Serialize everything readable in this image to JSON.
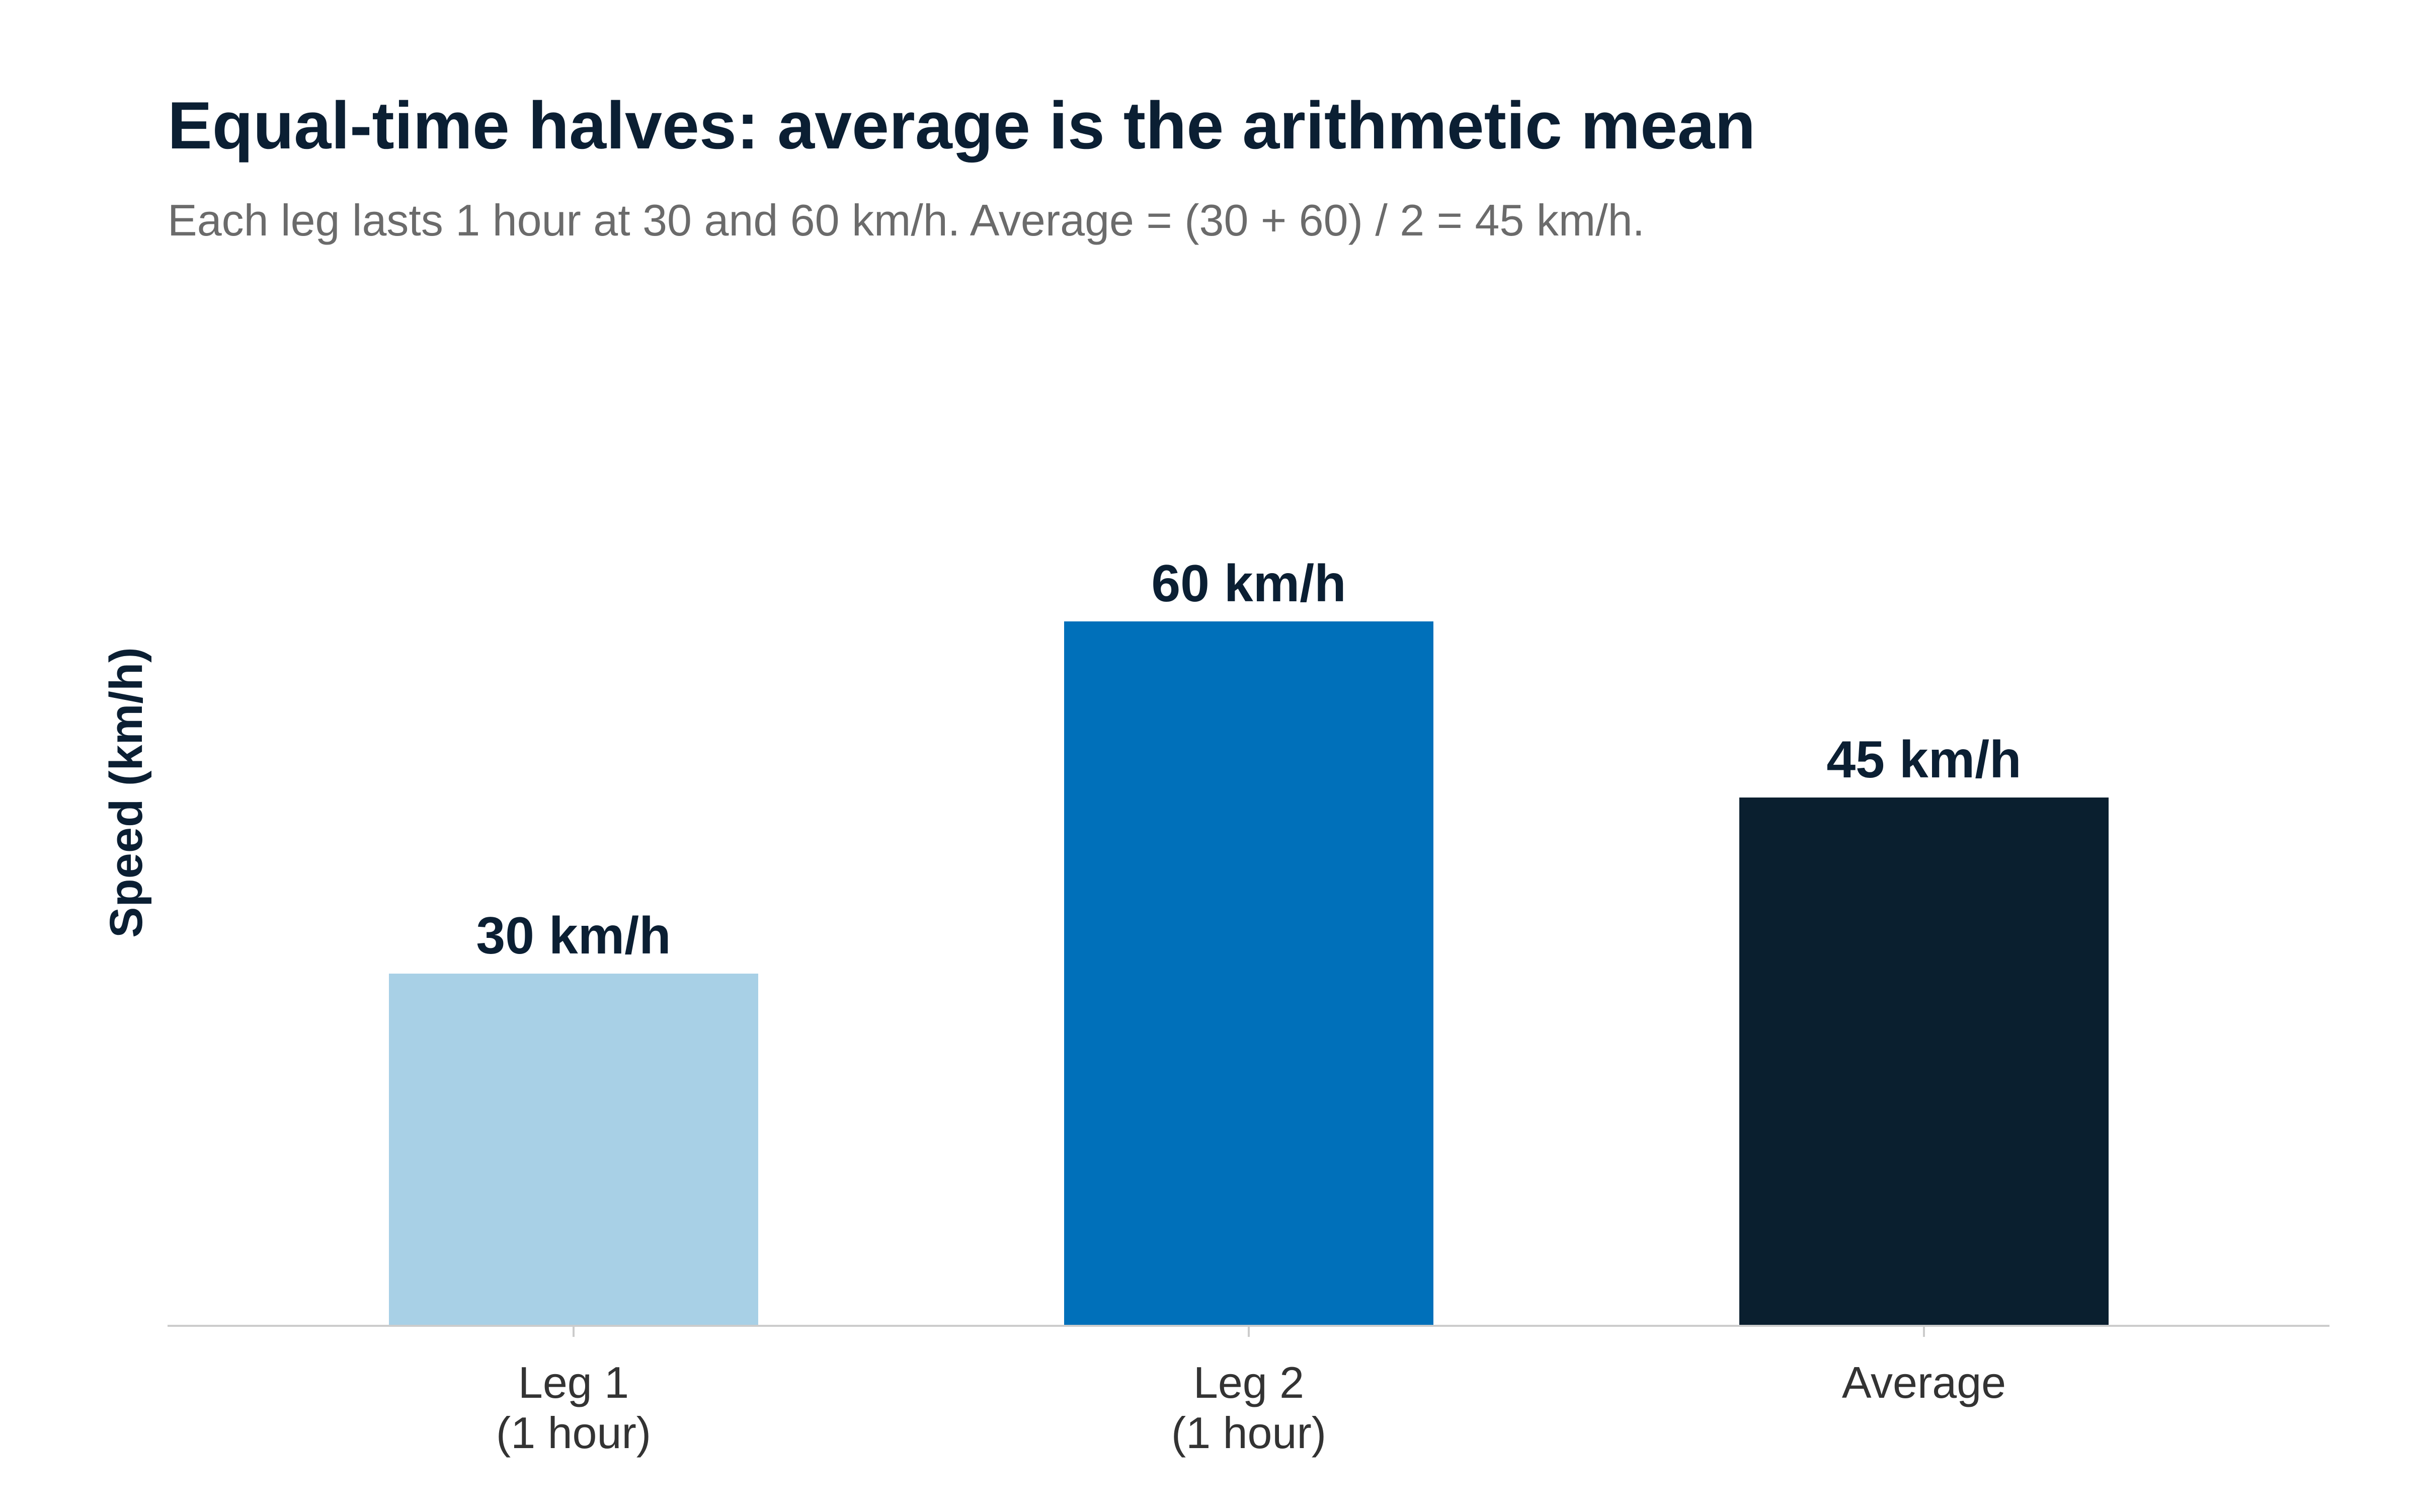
{
  "chart_data": {
    "type": "bar",
    "title": "Equal-time halves: average is the arithmetic mean",
    "subtitle": "Each leg lasts 1 hour at 30 and 60 km/h. Average = (30 + 60) / 2 = 45 km/h.",
    "xlabel": "",
    "ylabel": "Speed (km/h)",
    "ylim": [
      0,
      72
    ],
    "grid": false,
    "categories": [
      [
        "Leg 1",
        "(1 hour)"
      ],
      [
        "Leg 2",
        "(1 hour)"
      ],
      [
        "Average"
      ]
    ],
    "values": [
      30,
      60,
      45
    ],
    "value_labels": [
      "30 km/h",
      "60 km/h",
      "45 km/h"
    ],
    "colors": [
      "#a8d0e6",
      "#0070ba",
      "#0a1f2f"
    ]
  }
}
